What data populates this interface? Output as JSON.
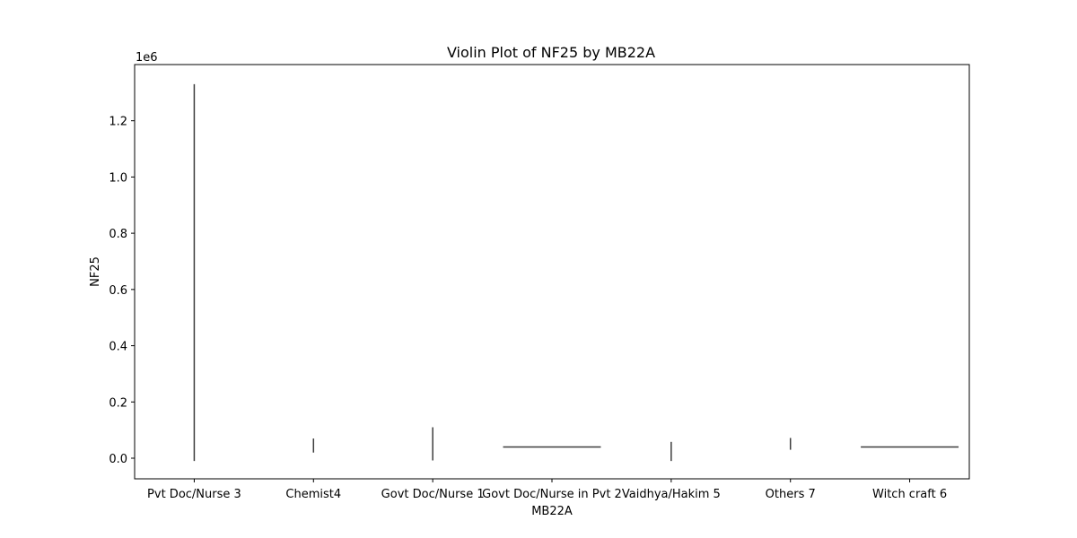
{
  "chart_data": {
    "type": "violin",
    "title": "Violin Plot of NF25 by MB22A",
    "xlabel": "MB22A",
    "ylabel": "NF25",
    "y_scale_label": "1e6",
    "ylim": [
      -70000,
      1400000
    ],
    "y_ticks": [
      0,
      200000,
      400000,
      600000,
      800000,
      1000000,
      1200000
    ],
    "y_tick_labels": [
      "0.0",
      "0.2",
      "0.4",
      "0.6",
      "0.8",
      "1.0",
      "1.2"
    ],
    "categories": [
      "Pvt Doc/Nurse 3",
      "Chemist4",
      "Govt Doc/Nurse 1",
      "Govt Doc/Nurse in Pvt 2",
      "Vaidhya/Hakim 5",
      "Others 7",
      "Witch craft 6"
    ],
    "violins": [
      {
        "category": "Pvt Doc/Nurse 3",
        "min": -10000,
        "max": 1330000
      },
      {
        "category": "Chemist4",
        "min": 20000,
        "max": 70000
      },
      {
        "category": "Govt Doc/Nurse 1",
        "min": -8000,
        "max": 110000
      },
      {
        "category": "Govt Doc/Nurse in Pvt 2",
        "min": 40000,
        "max": 40000
      },
      {
        "category": "Vaidhya/Hakim 5",
        "min": -10000,
        "max": 58000
      },
      {
        "category": "Others 7",
        "min": 30000,
        "max": 72000
      },
      {
        "category": "Witch craft 6",
        "min": 40000,
        "max": 40000
      }
    ],
    "grid": false,
    "line_color": "#3d3d3d"
  }
}
